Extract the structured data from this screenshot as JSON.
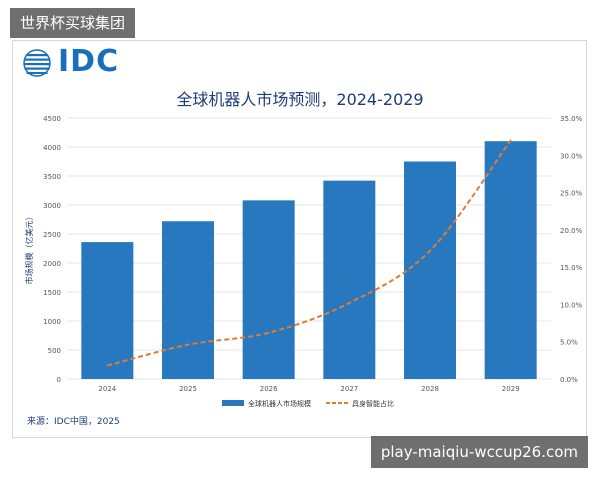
{
  "watermark_top": "世界杯买球集团",
  "watermark_bottom": "play-maiqiu-wccup26.com",
  "logo": {
    "text": "IDC",
    "icon": "idc-globe-icon"
  },
  "source": "来源：IDC中国，2025",
  "colors": {
    "bar": "#2878c0",
    "line": "#e07b32",
    "title": "#1e3c78",
    "logo": "#1a6fba"
  },
  "chart_data": {
    "type": "bar",
    "title": "全球机器人市场预测，2024-2029",
    "categories": [
      "2024",
      "2025",
      "2026",
      "2027",
      "2028",
      "2029"
    ],
    "ylabel": "市场规模（亿美元）",
    "ylim": [
      0,
      4500
    ],
    "yticks": [
      0,
      500,
      1000,
      1500,
      2000,
      2500,
      3000,
      3500,
      4000,
      4500
    ],
    "y2lim": [
      0,
      35
    ],
    "y2ticks": [
      "0.0%",
      "5.0%",
      "10.0%",
      "15.0%",
      "20.0%",
      "25.0%",
      "30.0%",
      "35.0%"
    ],
    "grid": true,
    "legend_position": "bottom",
    "series": [
      {
        "name": "全球机器人市场规模",
        "type": "bar",
        "axis": "left",
        "values": [
          2360,
          2720,
          3080,
          3420,
          3750,
          4100
        ]
      },
      {
        "name": "具身智能占比",
        "type": "line",
        "axis": "right",
        "style": "dashed",
        "values": [
          1.8,
          4.6,
          6.2,
          10.2,
          17.2,
          32.0
        ]
      }
    ]
  }
}
